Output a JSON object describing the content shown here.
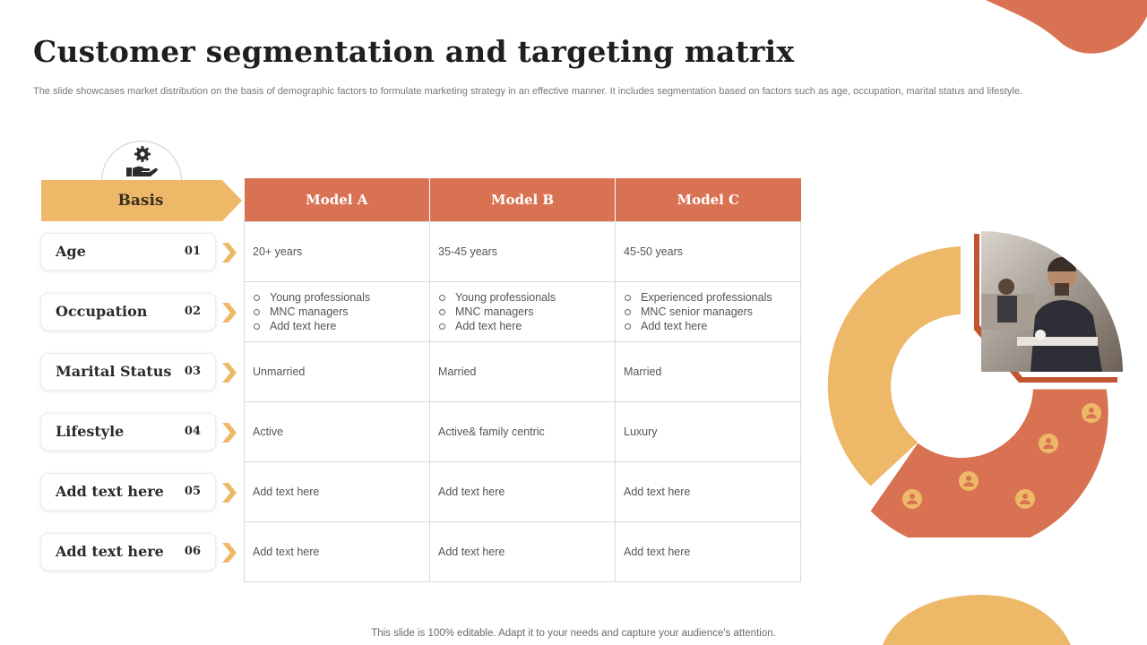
{
  "slide": {
    "title": "Customer segmentation and targeting matrix",
    "subtitle": "The slide showcases market distribution on the basis of demographic factors to formulate marketing strategy in an effective manner. It includes segmentation based on factors such as age, occupation, marital status and lifestyle.",
    "footer": "This slide is 100% editable. Adapt it to your needs and capture your audience's attention."
  },
  "colors": {
    "accent_orange": "#d97253",
    "accent_yellow": "#edb968",
    "text_dark": "#1f1f1f"
  },
  "icons": {
    "basis": "hand-gear-icon",
    "arrows": "chevron-right-icon",
    "donut_markers": "user-icon"
  },
  "basis": {
    "label": "Basis",
    "rows": [
      {
        "name": "Age",
        "num": "01"
      },
      {
        "name": "Occupation",
        "num": "02"
      },
      {
        "name": "Marital Status",
        "num": "03"
      },
      {
        "name": "Lifestyle",
        "num": "04"
      },
      {
        "name": "Add text here",
        "num": "05"
      },
      {
        "name": "Add text here",
        "num": "06"
      }
    ]
  },
  "matrix": {
    "headers": [
      "Model A",
      "Model B",
      "Model C"
    ],
    "age": [
      "20+ years",
      "35-45 years",
      "45-50 years"
    ],
    "occupation": [
      [
        "Young professionals",
        "MNC managers",
        "Add text here"
      ],
      [
        "Young professionals",
        "MNC managers",
        "Add text here"
      ],
      [
        "Experienced professionals",
        "MNC senior managers",
        "Add text here"
      ]
    ],
    "marital": [
      "Unmarried",
      "Married",
      "Married"
    ],
    "lifestyle": [
      "Active",
      "Active& family centric",
      "Luxury"
    ],
    "row5": [
      "Add text here",
      "Add text here",
      "Add text here"
    ],
    "row6": [
      "Add text here",
      "Add text here",
      "Add text here"
    ]
  }
}
